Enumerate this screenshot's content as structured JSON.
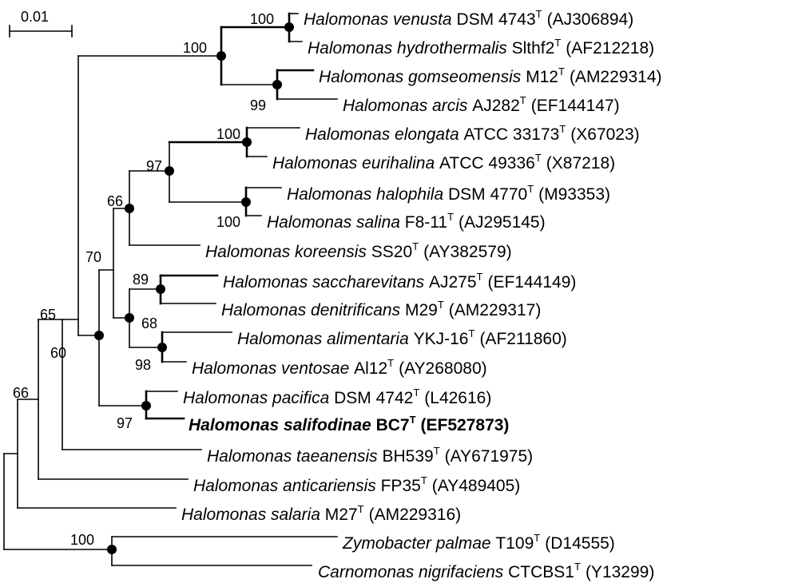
{
  "scale_bar": {
    "label": "0.01"
  },
  "leaves": [
    {
      "id": "venusta",
      "genus": "Halomonas",
      "species": "venusta",
      "strain": "DSM 4743",
      "superscript": "T",
      "accession": "(AJ306894)",
      "bold": false
    },
    {
      "id": "hydrothermalis",
      "genus": "Halomonas",
      "species": "hydrothermalis",
      "strain": "Slthf2",
      "superscript": "T",
      "accession": "(AF212218)",
      "bold": false
    },
    {
      "id": "gomseomensis",
      "genus": "Halomonas",
      "species": "gomseomensis",
      "strain": "M12",
      "superscript": "T",
      "accession": "(AM229314)",
      "bold": false
    },
    {
      "id": "arcis",
      "genus": "Halomonas",
      "species": "arcis",
      "strain": "AJ282",
      "superscript": "T",
      "accession": "(EF144147)",
      "bold": false
    },
    {
      "id": "elongata",
      "genus": "Halomonas",
      "species": "elongata",
      "strain": "ATCC 33173",
      "superscript": "T",
      "accession": "(X67023)",
      "bold": false
    },
    {
      "id": "eurihalina",
      "genus": "Halomonas",
      "species": "eurihalina",
      "strain": "ATCC 49336",
      "superscript": "T",
      "accession": "(X87218)",
      "bold": false
    },
    {
      "id": "halophila",
      "genus": "Halomonas",
      "species": "halophila",
      "strain": "DSM 4770",
      "superscript": "T",
      "accession": "(M93353)",
      "bold": false
    },
    {
      "id": "salina",
      "genus": "Halomonas",
      "species": "salina",
      "strain": "F8-11",
      "superscript": "T",
      "accession": "(AJ295145)",
      "bold": false
    },
    {
      "id": "koreensis",
      "genus": "Halomonas",
      "species": "koreensis",
      "strain": "SS20",
      "superscript": "T",
      "accession": "(AY382579)",
      "bold": false
    },
    {
      "id": "saccharevitans",
      "genus": "Halomonas",
      "species": "saccharevitans",
      "strain": "AJ275",
      "superscript": "T",
      "accession": "(EF144149)",
      "bold": false
    },
    {
      "id": "denitrificans",
      "genus": "Halomonas",
      "species": "denitrificans",
      "strain": "M29",
      "superscript": "T",
      "accession": "(AM229317)",
      "bold": false
    },
    {
      "id": "alimentaria",
      "genus": "Halomonas",
      "species": "alimentaria",
      "strain": "YKJ-16",
      "superscript": "T",
      "accession": "(AF211860)",
      "bold": false
    },
    {
      "id": "ventosae",
      "genus": "Halomonas",
      "species": "ventosae",
      "strain": "Al12",
      "superscript": "T",
      "accession": "(AY268080)",
      "bold": false
    },
    {
      "id": "pacifica",
      "genus": "Halomonas",
      "species": "pacifica",
      "strain": "DSM 4742",
      "superscript": "T",
      "accession": "(L42616)",
      "bold": false
    },
    {
      "id": "salifodinae",
      "genus": "Halomonas",
      "species": "salifodinae",
      "strain": "BC7",
      "superscript": "T",
      "accession": "(EF527873)",
      "bold": true
    },
    {
      "id": "taeanensis",
      "genus": "Halomonas",
      "species": "taeanensis",
      "strain": "BH539",
      "superscript": "T",
      "accession": "(AY671975)",
      "bold": false
    },
    {
      "id": "anticariensis",
      "genus": "Halomonas",
      "species": "anticariensis",
      "strain": "FP35",
      "superscript": "T",
      "accession": "(AY489405)",
      "bold": false
    },
    {
      "id": "salaria",
      "genus": "Halomonas",
      "species": "salaria",
      "strain": "M27",
      "superscript": "T",
      "accession": "(AM229316)",
      "bold": false
    },
    {
      "id": "palmae",
      "genus": "Zymobacter",
      "species": "palmae",
      "strain": "T109",
      "superscript": "T",
      "accession": "(D14555)",
      "bold": false
    },
    {
      "id": "nigrificiens",
      "genus": "Carnomonas",
      "species": "nigrifaciens",
      "strain": "CTCBS1",
      "superscript": "T",
      "accession": "(Y13299)",
      "bold": false
    }
  ],
  "bootstrap": [
    {
      "id": "n_venusta_hydro",
      "value": "100"
    },
    {
      "id": "n_top",
      "value": "100"
    },
    {
      "id": "n_gomseo_arcis",
      "value": "99"
    },
    {
      "id": "n_elong_eurih",
      "value": "100"
    },
    {
      "id": "n_97",
      "value": "97"
    },
    {
      "id": "n_halo_salina",
      "value": "100"
    },
    {
      "id": "n_66",
      "value": "66"
    },
    {
      "id": "n_70",
      "value": "70"
    },
    {
      "id": "n_sacch_denit",
      "value": "89"
    },
    {
      "id": "n_68",
      "value": "68"
    },
    {
      "id": "n_alim_vent",
      "value": "98"
    },
    {
      "id": "n_60",
      "value": "60"
    },
    {
      "id": "n_pac_salif",
      "value": "97"
    },
    {
      "id": "n_65",
      "value": "65"
    },
    {
      "id": "n_66b",
      "value": "66"
    },
    {
      "id": "n_outgroup",
      "value": "100"
    }
  ]
}
